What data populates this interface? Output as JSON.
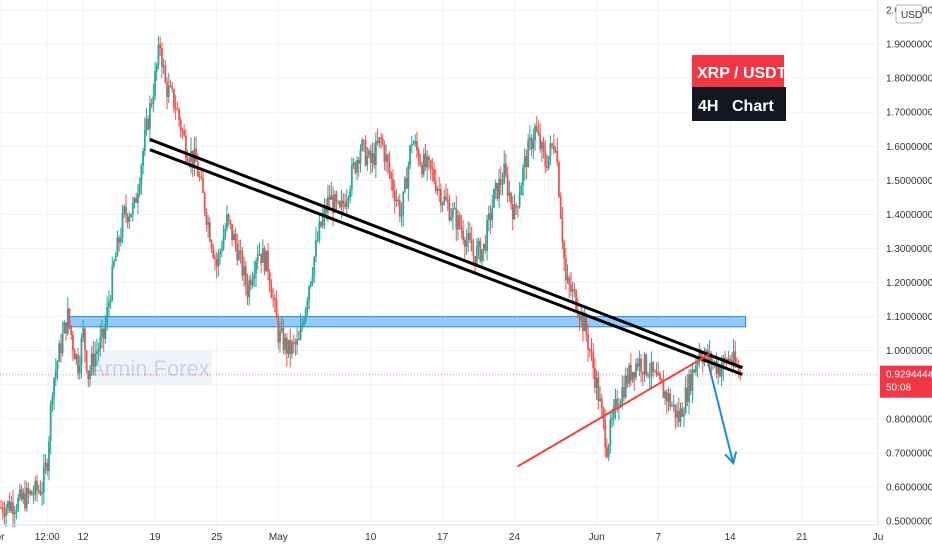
{
  "chart_data": {
    "type": "candlestick",
    "title_badge": {
      "line1": "XRP / USDT",
      "line2": "4H   Chart"
    },
    "currency": "USD",
    "watermark": "Armin.Forex",
    "price_axis": {
      "ylim": [
        0.5,
        2.0
      ],
      "tick_labels": [
        "2.00000000",
        "1.90000000",
        "1.80000000",
        "1.70000000",
        "1.60000000",
        "1.50000000",
        "1.40000000",
        "1.30000000",
        "1.20000000",
        "1.10000000",
        "1.00000000",
        "0.90000000",
        "0.80000000",
        "0.70000000",
        "0.60000000",
        "0.50000000"
      ]
    },
    "time_axis": {
      "labels": [
        {
          "label": "pr",
          "day": 3.9
        },
        {
          "label": "12:00",
          "day": 8.5
        },
        {
          "label": "12",
          "day": 12
        },
        {
          "label": "19",
          "day": 19
        },
        {
          "label": "25",
          "day": 25
        },
        {
          "label": "May",
          "day": 31
        },
        {
          "label": "10",
          "day": 40
        },
        {
          "label": "17",
          "day": 47
        },
        {
          "label": "24",
          "day": 54
        },
        {
          "label": "Jun",
          "day": 62
        },
        {
          "label": "7",
          "day": 68
        },
        {
          "label": "14",
          "day": 75
        },
        {
          "label": "21",
          "day": 82
        },
        {
          "label": "Ju",
          "day": 89.4
        }
      ],
      "xlim": [
        3.9,
        89.4
      ]
    },
    "current_price": {
      "value": "0.92944445",
      "countdown": "50:08",
      "price": 0.92944445
    },
    "price_path": [
      [
        4,
        0.54
      ],
      [
        6,
        0.56
      ],
      [
        8,
        0.6
      ],
      [
        8.5,
        0.68
      ],
      [
        9,
        0.9
      ],
      [
        10,
        1.04
      ],
      [
        10.5,
        1.1
      ],
      [
        11,
        1.02
      ],
      [
        11.5,
        0.96
      ],
      [
        12,
        1.05
      ],
      [
        12.5,
        0.93
      ],
      [
        13,
        0.98
      ],
      [
        14,
        1.04
      ],
      [
        15,
        1.25
      ],
      [
        16,
        1.4
      ],
      [
        17,
        1.42
      ],
      [
        18,
        1.62
      ],
      [
        19,
        1.8
      ],
      [
        19.5,
        1.9
      ],
      [
        20,
        1.78
      ],
      [
        21,
        1.72
      ],
      [
        22,
        1.6
      ],
      [
        23,
        1.55
      ],
      [
        24,
        1.4
      ],
      [
        25,
        1.25
      ],
      [
        26,
        1.38
      ],
      [
        27,
        1.3
      ],
      [
        28,
        1.18
      ],
      [
        29,
        1.3
      ],
      [
        30,
        1.25
      ],
      [
        31,
        1.05
      ],
      [
        32,
        1.0
      ],
      [
        33,
        1.02
      ],
      [
        34,
        1.2
      ],
      [
        35,
        1.35
      ],
      [
        36,
        1.45
      ],
      [
        37,
        1.4
      ],
      [
        38,
        1.5
      ],
      [
        39,
        1.6
      ],
      [
        40,
        1.55
      ],
      [
        41,
        1.62
      ],
      [
        42,
        1.5
      ],
      [
        43,
        1.4
      ],
      [
        44,
        1.62
      ],
      [
        45,
        1.55
      ],
      [
        46,
        1.52
      ],
      [
        47,
        1.45
      ],
      [
        48,
        1.4
      ],
      [
        49,
        1.35
      ],
      [
        50,
        1.28
      ],
      [
        51,
        1.3
      ],
      [
        52,
        1.45
      ],
      [
        53,
        1.52
      ],
      [
        54,
        1.4
      ],
      [
        55,
        1.55
      ],
      [
        56,
        1.65
      ],
      [
        57,
        1.55
      ],
      [
        58,
        1.62
      ],
      [
        59,
        1.2
      ],
      [
        60,
        1.15
      ],
      [
        61,
        1.05
      ],
      [
        62,
        0.9
      ],
      [
        63,
        0.72
      ],
      [
        64,
        0.85
      ],
      [
        65,
        0.92
      ],
      [
        66,
        0.97
      ],
      [
        67,
        0.95
      ],
      [
        68,
        0.9
      ],
      [
        69,
        0.86
      ],
      [
        70,
        0.8
      ],
      [
        71,
        0.9
      ],
      [
        72,
        1.0
      ],
      [
        73,
        0.97
      ],
      [
        74,
        0.95
      ],
      [
        75,
        0.98
      ],
      [
        76,
        0.93
      ]
    ],
    "annotations": {
      "resistance_zone": {
        "from": 1.07,
        "to": 1.1,
        "day_from": 10.5,
        "day_to": 76.5
      },
      "descending_trendlines": [
        {
          "start": [
            18.5,
            1.62
          ],
          "end": [
            76.2,
            0.95
          ]
        },
        {
          "start": [
            18.5,
            1.59
          ],
          "end": [
            76.2,
            0.93
          ]
        }
      ],
      "rising_support": {
        "start": [
          54.3,
          0.66
        ],
        "end": [
          73,
          0.99
        ]
      },
      "projection_arrow": {
        "start": [
          72.9,
          0.96
        ],
        "end": [
          75.3,
          0.67
        ]
      }
    },
    "colors": {
      "up": "#26a69a",
      "down": "#ef5350",
      "zone_fill": "#64b5f6",
      "zone_stroke": "#1e88e5",
      "trendline": "#000000",
      "support": "#f44336",
      "arrow": "#1e88e5",
      "badge_red": "#f23645",
      "badge_black": "#131722",
      "price_tag": "#f23645"
    },
    "grid": true
  }
}
